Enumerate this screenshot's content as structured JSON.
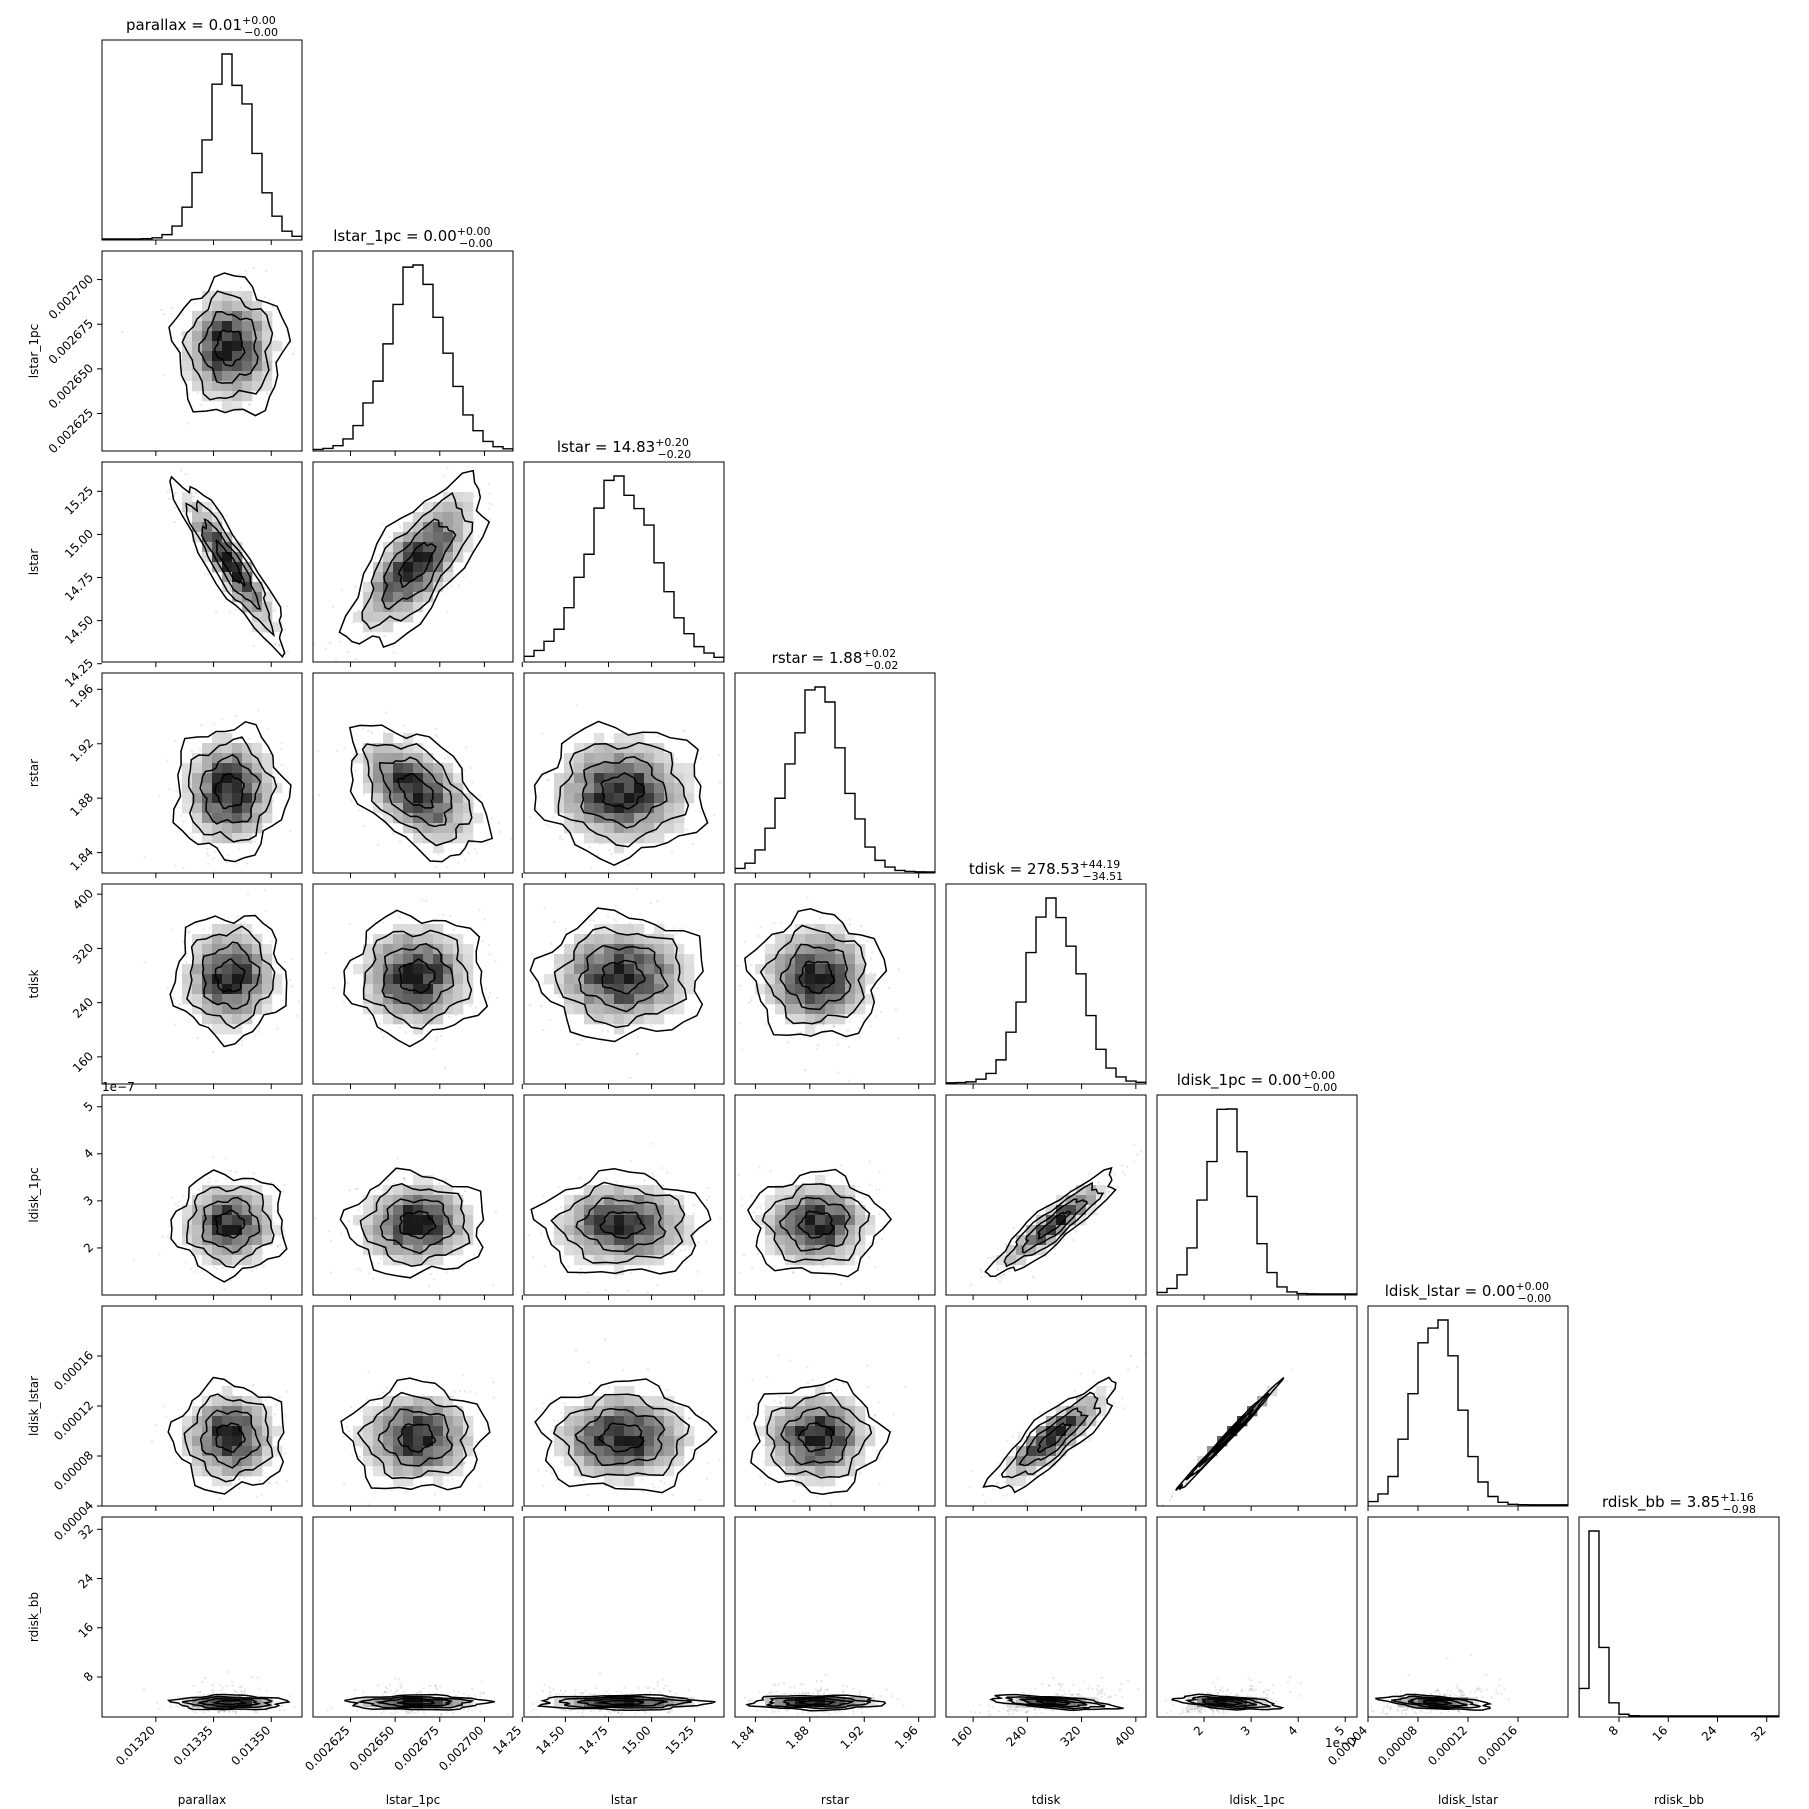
{
  "chart_data": {
    "type": "corner",
    "offset_label": "1e−7",
    "params": [
      {
        "key": "parallax",
        "label": "parallax",
        "median": "0.01",
        "plus": "+0.00",
        "minus": "−0.00",
        "center": 0.013392,
        "sigma": 6e-05,
        "range": [
          0.01306,
          0.01358
        ],
        "ticks": [
          0.0132,
          0.01335,
          0.0135
        ],
        "tick_labels": [
          "0.01320",
          "0.01335",
          "0.01350"
        ]
      },
      {
        "key": "lstar_1pc",
        "label": "lstar_1pc",
        "median": "0.00",
        "plus": "+0.00",
        "minus": "−0.00",
        "center": 0.002662,
        "sigma": 1.6e-05,
        "range": [
          0.002604,
          0.002716
        ],
        "ticks": [
          0.002625,
          0.00265,
          0.002675,
          0.0027
        ],
        "tick_labels": [
          "0.002625",
          "0.002650",
          "0.002675",
          "0.002700"
        ]
      },
      {
        "key": "lstar",
        "label": "lstar",
        "median": "14.83",
        "plus": "+0.20",
        "minus": "−0.20",
        "center": 14.83,
        "sigma": 0.2,
        "range": [
          14.26,
          15.42
        ],
        "ticks": [
          14.25,
          14.5,
          14.75,
          15.0,
          15.25
        ],
        "tick_labels": [
          "14.25",
          "14.50",
          "14.75",
          "15.00",
          "15.25"
        ]
      },
      {
        "key": "rstar",
        "label": "rstar",
        "median": "1.88",
        "plus": "+0.02",
        "minus": "−0.02",
        "center": 1.885,
        "sigma": 0.02,
        "range": [
          1.825,
          1.972
        ],
        "ticks": [
          1.84,
          1.88,
          1.92,
          1.96
        ],
        "tick_labels": [
          "1.84",
          "1.88",
          "1.92",
          "1.96"
        ]
      },
      {
        "key": "tdisk",
        "label": "tdisk",
        "median": "278.53",
        "plus": "+44.19",
        "minus": "−34.51",
        "center": 278.5,
        "sigma": 38,
        "range": [
          120,
          415
        ],
        "ticks": [
          160,
          240,
          320,
          400
        ],
        "tick_labels": [
          "160",
          "240",
          "320",
          "400"
        ]
      },
      {
        "key": "ldisk_1pc",
        "label": "ldisk_1pc",
        "median": "0.00",
        "plus": "+0.00",
        "minus": "−0.00",
        "center": 2.5,
        "sigma": 0.45,
        "range": [
          1.0,
          5.25
        ],
        "ticks": [
          2,
          3,
          4,
          5
        ],
        "tick_labels": [
          "2",
          "3",
          "4",
          "5"
        ]
      },
      {
        "key": "ldisk_lstar",
        "label": "ldisk_lstar",
        "median": "0.00",
        "plus": "+0.00",
        "minus": "−0.00",
        "center": 9.5e-05,
        "sigma": 1.8e-05,
        "range": [
          4e-05,
          0.0002
        ],
        "ticks": [
          4e-05,
          8e-05,
          0.00012,
          0.00016
        ],
        "tick_labels": [
          "0.00004",
          "0.00008",
          "0.00012",
          "0.00016"
        ]
      },
      {
        "key": "rdisk_bb",
        "label": "rdisk_bb",
        "median": "3.85",
        "plus": "+1.16",
        "minus": "−0.98",
        "center": 3.85,
        "sigma": 1.1,
        "range": [
          1.5,
          34
        ],
        "ticks": [
          8,
          16,
          24,
          32
        ],
        "tick_labels": [
          "8",
          "16",
          "24",
          "32"
        ]
      }
    ],
    "correlations": {
      "0-2": -0.9,
      "1-2": 0.7,
      "1-3": -0.5,
      "2-3": 0.0,
      "4-5": 0.9,
      "4-6": 0.85,
      "5-6": 0.995,
      "4-7": -0.6,
      "5-7": -0.5,
      "6-7": -0.5
    },
    "contour_levels": [
      "0.5σ",
      "1σ",
      "1.5σ",
      "2σ"
    ]
  }
}
